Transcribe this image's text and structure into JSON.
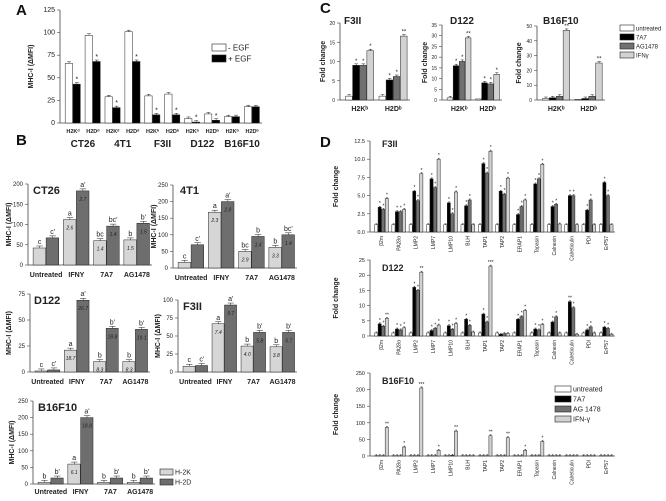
{
  "panel_labels": [
    "A",
    "B",
    "C",
    "D"
  ],
  "chart_data": [
    {
      "id": "A",
      "type": "bar",
      "title": "",
      "ylabel": "MHC-I (ΔMFI)",
      "ylim": [
        0,
        125
      ],
      "yticks": [
        "0",
        "25",
        "50",
        "75",
        "100",
        "125"
      ],
      "categories": [
        "H2Kᵈ",
        "H2Dᵈ",
        "H2Kᵈ",
        "H2Dᵈ",
        "H2Kᵇ",
        "H2Dᵇ",
        "H2Kᵇ",
        "H2Dᵇ",
        "H2Kᵇ",
        "H2Dᵇ"
      ],
      "groups": [
        "CT26",
        "4T1",
        "F3II",
        "D122",
        "B16F10"
      ],
      "series": [
        {
          "name": "- EGF",
          "color": "#ffffff",
          "values": [
            66,
            97,
            29,
            101,
            30,
            32,
            5,
            10,
            7,
            18
          ]
        },
        {
          "name": "+ EGF",
          "color": "#000000",
          "values": [
            43,
            68,
            17,
            68,
            9,
            9,
            1,
            3,
            7,
            18
          ],
          "sig": [
            "*",
            "*",
            "*",
            "*",
            "*",
            "*",
            "*",
            "*",
            "",
            ""
          ]
        }
      ]
    },
    {
      "id": "B-CT26",
      "type": "bar",
      "title": "CT26",
      "ylabel": "MHC-I (ΔMFI)",
      "ylim": [
        0,
        200
      ],
      "yticks": [
        "0",
        "50",
        "100",
        "150",
        "200"
      ],
      "categories": [
        "Untreated",
        "IFNY",
        "7A7",
        "AG1478"
      ],
      "series": [
        {
          "name": "H-2K",
          "color": "#d6d6d6",
          "values": [
            42,
            112,
            60,
            62
          ],
          "letters": [
            "c",
            "a",
            "bc",
            "b"
          ],
          "inner": [
            "",
            "2.6",
            "1.4",
            "1.5"
          ]
        },
        {
          "name": "H-2D",
          "color": "#6e6e6e",
          "values": [
            67,
            183,
            96,
            103
          ],
          "letters": [
            "c'",
            "a'",
            "bc'",
            "b'"
          ],
          "inner": [
            "",
            "2.7",
            "1.4",
            "1.5"
          ]
        }
      ]
    },
    {
      "id": "B-4T1",
      "type": "bar",
      "title": "4T1",
      "ylabel": "MHC-I (ΔMFI)",
      "ylim": [
        0,
        250
      ],
      "yticks": [
        "0",
        "50",
        "100",
        "150",
        "200",
        "250"
      ],
      "categories": [
        "Untreated",
        "IFNY",
        "7A7",
        "AG1478"
      ],
      "series": [
        {
          "name": "H-2K",
          "color": "#d6d6d6",
          "values": [
            17,
            168,
            50,
            62
          ],
          "letters": [
            "c",
            "a",
            "bc",
            "b"
          ],
          "inner": [
            "",
            "2.3",
            "2.9",
            "3.3"
          ]
        },
        {
          "name": "H-2D",
          "color": "#6e6e6e",
          "values": [
            70,
            200,
            95,
            100
          ],
          "letters": [
            "c'",
            "a'",
            "b",
            "bc'"
          ],
          "inner": [
            "",
            "2.8",
            "1.4",
            "1.4"
          ]
        }
      ]
    },
    {
      "id": "B-D122",
      "type": "bar",
      "title": "D122",
      "ylabel": "MHC-I (ΔMFI)",
      "ylim": [
        0,
        75
      ],
      "yticks": [
        "0",
        "25",
        "50",
        "75"
      ],
      "categories": [
        "Untreated",
        "IFNY",
        "7A7",
        "AG1478"
      ],
      "series": [
        {
          "name": "H-2K",
          "color": "#d6d6d6",
          "values": [
            1,
            21,
            10,
            10
          ],
          "letters": [
            "c",
            "a",
            "b",
            "b"
          ],
          "inner": [
            "",
            "18.7",
            "8.3",
            "8.3"
          ]
        },
        {
          "name": "H-2D",
          "color": "#6e6e6e",
          "values": [
            2,
            69,
            42,
            41
          ],
          "letters": [
            "c'",
            "a'",
            "b'",
            "b'"
          ],
          "inner": [
            "",
            "26.7",
            "18.8",
            "19.1"
          ]
        }
      ]
    },
    {
      "id": "B-F3II",
      "type": "bar",
      "title": "F3II",
      "ylabel": "MHC-I (ΔMFI)",
      "ylim": [
        0,
        100
      ],
      "yticks": [
        "0",
        "25",
        "50",
        "75",
        "100"
      ],
      "categories": [
        "Untreated",
        "IFNY",
        "7A7",
        "AG1478"
      ],
      "series": [
        {
          "name": "H-2K",
          "color": "#d6d6d6",
          "values": [
            8,
            67,
            36,
            35
          ],
          "letters": [
            "c",
            "a",
            "b",
            "b"
          ],
          "inner": [
            "",
            "7.4",
            "4.0",
            "3.8"
          ]
        },
        {
          "name": "H-2D",
          "color": "#6e6e6e",
          "values": [
            9,
            93,
            55,
            55
          ],
          "letters": [
            "c'",
            "a'",
            "b'",
            "b'"
          ],
          "inner": [
            "",
            "9.7",
            "5.8",
            "5.7"
          ]
        }
      ]
    },
    {
      "id": "B-B16F10",
      "type": "bar",
      "title": "B16F10",
      "ylabel": "MHC-I (ΔMFI)",
      "ylim": [
        0,
        250
      ],
      "yticks": [
        "0",
        "50",
        "100",
        "150",
        "200",
        "250"
      ],
      "categories": [
        "Untreated",
        "IFNY",
        "7A7",
        "AG1478"
      ],
      "legend": "bottom-right",
      "series": [
        {
          "name": "H-2K",
          "color": "#d6d6d6",
          "values": [
            5,
            60,
            5,
            5
          ],
          "letters": [
            "b",
            "a",
            "b",
            "b"
          ],
          "inner": [
            "",
            "6.1",
            "",
            ""
          ]
        },
        {
          "name": "H-2D",
          "color": "#6e6e6e",
          "values": [
            18,
            200,
            18,
            18
          ],
          "letters": [
            "b'",
            "a'",
            "b'",
            "b'"
          ],
          "inner": [
            "",
            "18.8",
            "",
            ""
          ]
        }
      ]
    },
    {
      "id": "C-F3II",
      "type": "bar",
      "title": "F3II",
      "ylabel": "Fold change",
      "ylim": [
        0,
        20
      ],
      "yticks": [
        "0",
        "5",
        "10",
        "15",
        "20"
      ],
      "categories": [
        "H2Kᵇ",
        "H2Dᵇ"
      ],
      "series": [
        {
          "name": "untreated",
          "color": "#ffffff",
          "values": [
            1,
            1
          ]
        },
        {
          "name": "7A7",
          "color": "#000000",
          "values": [
            9,
            5.2
          ],
          "sig": [
            "*",
            "*"
          ]
        },
        {
          "name": "AG1478",
          "color": "#707070",
          "values": [
            9,
            6.1
          ],
          "sig": [
            "*",
            "*"
          ]
        },
        {
          "name": "IFNγ",
          "color": "#d2d2d2",
          "values": [
            12.8,
            16.6
          ],
          "sig": [
            "*",
            "**"
          ]
        }
      ]
    },
    {
      "id": "C-D122",
      "type": "bar",
      "title": "D122",
      "ylabel": "Fold change",
      "ylim": [
        0,
        35
      ],
      "yticks": [
        "0",
        "5",
        "10",
        "15",
        "20",
        "25",
        "30",
        "35"
      ],
      "categories": [
        "H2Kᵇ",
        "H2Dᵇ"
      ],
      "series": [
        {
          "name": "untreated",
          "color": "#ffffff",
          "values": [
            1,
            0.5
          ]
        },
        {
          "name": "7A7",
          "color": "#000000",
          "values": [
            16,
            8
          ],
          "sig": [
            "*",
            "*"
          ]
        },
        {
          "name": "AG1478",
          "color": "#707070",
          "values": [
            18,
            7.5
          ],
          "sig": [
            "*",
            "*"
          ]
        },
        {
          "name": "IFNγ",
          "color": "#d2d2d2",
          "values": [
            29,
            12
          ],
          "sig": [
            "**",
            "*"
          ]
        }
      ]
    },
    {
      "id": "C-B16F10",
      "type": "bar",
      "title": "B16F10",
      "ylabel": "Fold change",
      "ylim": [
        0,
        50
      ],
      "yticks": [
        "0",
        "10",
        "20",
        "30",
        "40",
        "50"
      ],
      "categories": [
        "H2Kᵇ",
        "H2Dᵇ"
      ],
      "legend": "right",
      "series": [
        {
          "name": "untreated",
          "color": "#ffffff",
          "values": [
            1,
            0.5
          ]
        },
        {
          "name": "7A7",
          "color": "#000000",
          "values": [
            1.5,
            1
          ]
        },
        {
          "name": "AG1478",
          "color": "#707070",
          "values": [
            2.5,
            2.5
          ]
        },
        {
          "name": "IFNγ",
          "color": "#d2d2d2",
          "values": [
            47,
            25
          ],
          "sig": [
            "**",
            "**"
          ]
        }
      ]
    },
    {
      "id": "D-F3II",
      "type": "bar",
      "title": "F3II",
      "ylabel": "Fold change",
      "ylim": [
        0,
        12.5
      ],
      "yticks": [
        "0.0",
        "2.5",
        "5.0",
        "7.5",
        "10.0",
        "12.5"
      ],
      "categories": [
        "β2m",
        "PA28α",
        "LMP2",
        "LMP7",
        "LMP10",
        "BLH",
        "TAP1",
        "TAP2",
        "ERAP1",
        "Tapasin",
        "Calnexin",
        "Calreticulin",
        "PDI",
        "ErP57"
      ],
      "series": [
        {
          "name": "untreated",
          "color": "#ffffff",
          "values": [
            1,
            1,
            1,
            1,
            1,
            1,
            1,
            1,
            1,
            1,
            1,
            1,
            1,
            1
          ]
        },
        {
          "name": "7A7",
          "color": "#000000",
          "values": [
            3.4,
            2.8,
            5.6,
            7.3,
            4.0,
            3.6,
            9.4,
            5.6,
            2.4,
            6.6,
            3.5,
            5.0,
            3.0,
            6.8
          ],
          "sig": [
            "*",
            "*",
            "*",
            "*",
            "*",
            "*",
            "*",
            "*",
            "*",
            "*",
            "*",
            "*",
            "*",
            "*"
          ]
        },
        {
          "name": "AG1478",
          "color": "#707070",
          "values": [
            3.1,
            2.8,
            4.3,
            6.1,
            2.5,
            4.4,
            8.1,
            5.2,
            3.5,
            7.3,
            3.8,
            5.0,
            4.4,
            5.0
          ],
          "sig": [
            "*",
            "*",
            "*",
            "*",
            "*",
            "*",
            "*",
            "*",
            "*",
            "*",
            "*",
            "*",
            "*",
            "*"
          ]
        },
        {
          "name": "IFN-γ",
          "color": "#d2d2d2",
          "values": [
            4.6,
            3.1,
            8.0,
            10.0,
            5.5,
            1.0,
            11.1,
            7.4,
            4.4,
            9.3,
            1.1,
            1.0,
            1.0,
            1.0
          ],
          "sig": [
            "*",
            "*",
            "*",
            "*",
            "*",
            "",
            "*",
            "*",
            "*",
            "*",
            "",
            "",
            "",
            ""
          ]
        }
      ]
    },
    {
      "id": "D-D122",
      "type": "bar",
      "title": "D122",
      "ylabel": "Fold change",
      "ylim": [
        0,
        25
      ],
      "yticks": [
        "0",
        "5",
        "10",
        "15",
        "20",
        "25"
      ],
      "categories": [
        "β2m",
        "PA28α",
        "LMP2",
        "LMP7",
        "LMP10",
        "BLH",
        "TAP1",
        "TAP2",
        "ERAP1",
        "Tapasin",
        "Calnexin",
        "Calreticulin",
        "PDI",
        "ErP57"
      ],
      "series": [
        {
          "name": "untreated",
          "color": "#ffffff",
          "values": [
            1,
            1,
            1,
            1,
            1,
            1,
            1,
            1,
            1,
            1,
            1,
            1,
            1,
            1
          ]
        },
        {
          "name": "7A7",
          "color": "#000000",
          "values": [
            4,
            2.3,
            16,
            1.8,
            3.4,
            5.5,
            7.2,
            0.6,
            5.5,
            2.3,
            4.6,
            11.3,
            2,
            2.9
          ],
          "sig": [
            "*",
            "*",
            "*",
            "*",
            "*",
            "*",
            "*",
            "",
            "*",
            "*",
            "*",
            "**",
            "*",
            "*"
          ]
        },
        {
          "name": "AG1478",
          "color": "#707070",
          "values": [
            3.2,
            2,
            15,
            2.5,
            2.2,
            3.5,
            4.6,
            0.8,
            6.4,
            2,
            6.3,
            9.3,
            3,
            2.5
          ],
          "sig": [
            "*",
            "*",
            "*",
            "*",
            "*",
            "*",
            "*",
            "",
            "*",
            "*",
            "*",
            "*",
            "*",
            "*"
          ]
        },
        {
          "name": "IFN-γ",
          "color": "#d2d2d2",
          "values": [
            5.8,
            2.7,
            21,
            3.6,
            4.1,
            1.3,
            23,
            0.8,
            8.4,
            3.8,
            1,
            0.6,
            1,
            0.6
          ],
          "sig": [
            "**",
            "*",
            "**",
            "*",
            "*",
            "",
            "***",
            "",
            "*",
            "*",
            "",
            "",
            "",
            ""
          ]
        }
      ]
    },
    {
      "id": "D-B16F10",
      "type": "bar",
      "title": "B16F10",
      "ylabel": "Fold change",
      "ylim": [
        0,
        250
      ],
      "yticks": [
        "0",
        "50",
        "100",
        "150",
        "200",
        "250"
      ],
      "categories": [
        "β2m",
        "PA28α",
        "LMP2",
        "LMP7",
        "LMP10",
        "BLH",
        "TAP1",
        "TAP2",
        "ERAP1",
        "Tapasin",
        "Calnexin",
        "Calreticulin",
        "PDI",
        "ErP57"
      ],
      "legend": "top-right",
      "series": [
        {
          "name": "untreated",
          "color": "#ffffff",
          "values": [
            1,
            1,
            1,
            1,
            1,
            1,
            1,
            1,
            1,
            1,
            1,
            1,
            1,
            1
          ]
        },
        {
          "name": "7A7",
          "color": "#000000",
          "values": [
            1,
            1,
            1,
            1,
            1,
            1,
            1,
            1,
            1,
            1,
            1,
            1,
            1,
            1
          ]
        },
        {
          "name": "AG 1478",
          "color": "#707070",
          "values": [
            1,
            1,
            1,
            1,
            2,
            1,
            1,
            1,
            1,
            1,
            1,
            1,
            1,
            1
          ]
        },
        {
          "name": "IFN-γ",
          "color": "#d2d2d2",
          "values": [
            86,
            27,
            205,
            17,
            75,
            1,
            61,
            55,
            17,
            44,
            1,
            1,
            1,
            1
          ],
          "sig": [
            "**",
            "*",
            "***",
            "*",
            "**",
            "",
            "**",
            "**",
            "*",
            "*",
            "",
            "",
            "",
            ""
          ]
        }
      ]
    }
  ]
}
